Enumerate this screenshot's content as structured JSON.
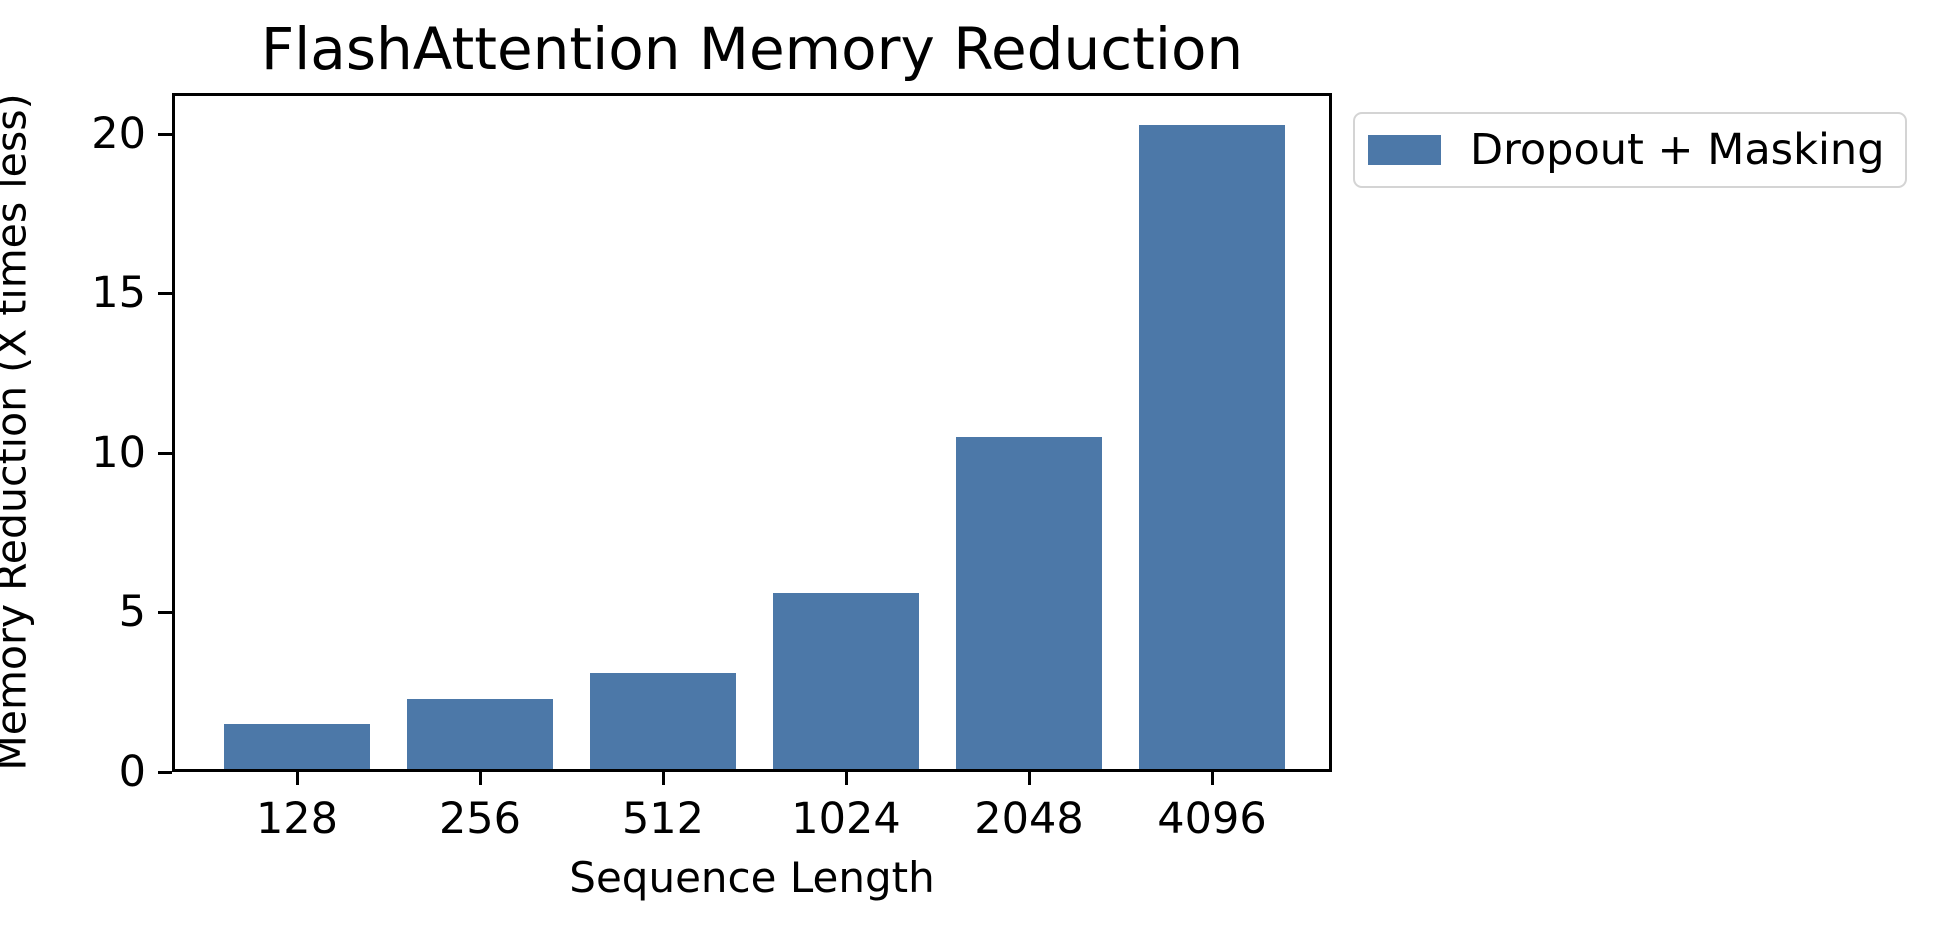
{
  "chart_data": {
    "type": "bar",
    "title": "FlashAttention Memory Reduction",
    "categories": [
      "128",
      "256",
      "512",
      "1024",
      "2048",
      "4096"
    ],
    "series": [
      {
        "name": "Dropout + Masking",
        "color": "#4C78A8",
        "values": [
          1.5,
          2.3,
          3.1,
          5.6,
          10.5,
          20.3
        ]
      }
    ],
    "xlabel": "Sequence Length",
    "ylabel": "Memory Reduction (X times less)",
    "ylim": [
      0,
      21.3
    ],
    "yticks": [
      0,
      5,
      10,
      15,
      20
    ],
    "grid": false,
    "legend_position": "outside-upper-right",
    "colors": {
      "bar": "#4C78A8",
      "spine": "#000000",
      "text": "#000000",
      "legend_border": "#d4d4d4",
      "background": "#ffffff"
    }
  }
}
